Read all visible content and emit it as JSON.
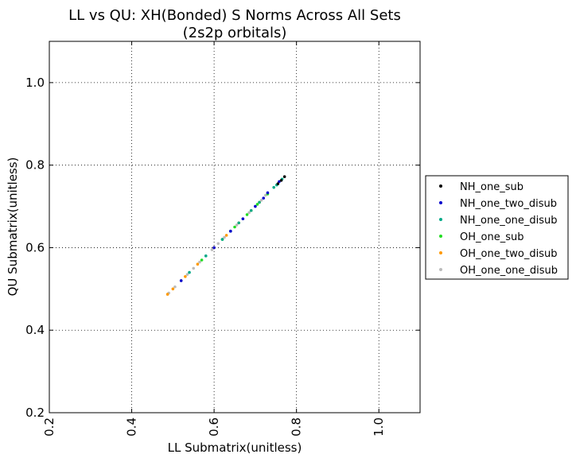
{
  "chart_data": {
    "type": "scatter",
    "title": "LL vs QU: XH(Bonded) S Norms Across All Sets",
    "subtitle": "(2s2p orbitals)",
    "xlabel": "LL Submatrix(unitless)",
    "ylabel": "QU Submatrix(unitless)",
    "xlim": [
      0.2,
      1.1
    ],
    "ylim": [
      0.2,
      1.1
    ],
    "xticks": [
      0.2,
      0.4,
      0.6,
      0.8,
      1.0
    ],
    "yticks": [
      0.2,
      0.4,
      0.6,
      0.8,
      1.0
    ],
    "xtick_labels": [
      "0.2",
      "0.4",
      "0.6",
      "0.8",
      "1.0"
    ],
    "ytick_labels": [
      "0.2",
      "0.4",
      "0.6",
      "0.8",
      "1.0"
    ],
    "grid": true,
    "legend_position": "right, outside plot",
    "series": [
      {
        "name": "NH_one_sub",
        "color": "#000000",
        "x": [
          0.755,
          0.763,
          0.771
        ],
        "y": [
          0.755,
          0.763,
          0.772
        ]
      },
      {
        "name": "NH_one_two_disub",
        "color": "#0000cc",
        "x": [
          0.52,
          0.6,
          0.64,
          0.67,
          0.7,
          0.72,
          0.73,
          0.758
        ],
        "y": [
          0.52,
          0.6,
          0.64,
          0.67,
          0.7,
          0.72,
          0.733,
          0.76
        ]
      },
      {
        "name": "NH_one_one_disub",
        "color": "#00aa88",
        "x": [
          0.54,
          0.58,
          0.62,
          0.64,
          0.66,
          0.69,
          0.71,
          0.745,
          0.752,
          0.765
        ],
        "y": [
          0.54,
          0.58,
          0.62,
          0.64,
          0.66,
          0.69,
          0.71,
          0.746,
          0.752,
          0.766
        ]
      },
      {
        "name": "OH_one_sub",
        "color": "#22dd22",
        "x": [
          0.57,
          0.62,
          0.65,
          0.68,
          0.705,
          0.73
        ],
        "y": [
          0.57,
          0.62,
          0.65,
          0.68,
          0.705,
          0.73
        ]
      },
      {
        "name": "OH_one_two_disub",
        "color": "#ff9900",
        "x": [
          0.487,
          0.5,
          0.53,
          0.56,
          0.6,
          0.63,
          0.66,
          0.69,
          0.71
        ],
        "y": [
          0.487,
          0.5,
          0.53,
          0.56,
          0.6,
          0.63,
          0.66,
          0.69,
          0.71
        ]
      },
      {
        "name": "OH_one_one_disub",
        "color": "#bbbbbb",
        "x": [
          0.49,
          0.505,
          0.52,
          0.535,
          0.55,
          0.565,
          0.58,
          0.595,
          0.61,
          0.625,
          0.64,
          0.655,
          0.67,
          0.685,
          0.7,
          0.715,
          0.725
        ],
        "y": [
          0.49,
          0.505,
          0.52,
          0.535,
          0.55,
          0.565,
          0.58,
          0.595,
          0.61,
          0.625,
          0.64,
          0.655,
          0.67,
          0.685,
          0.7,
          0.715,
          0.727
        ]
      }
    ]
  }
}
